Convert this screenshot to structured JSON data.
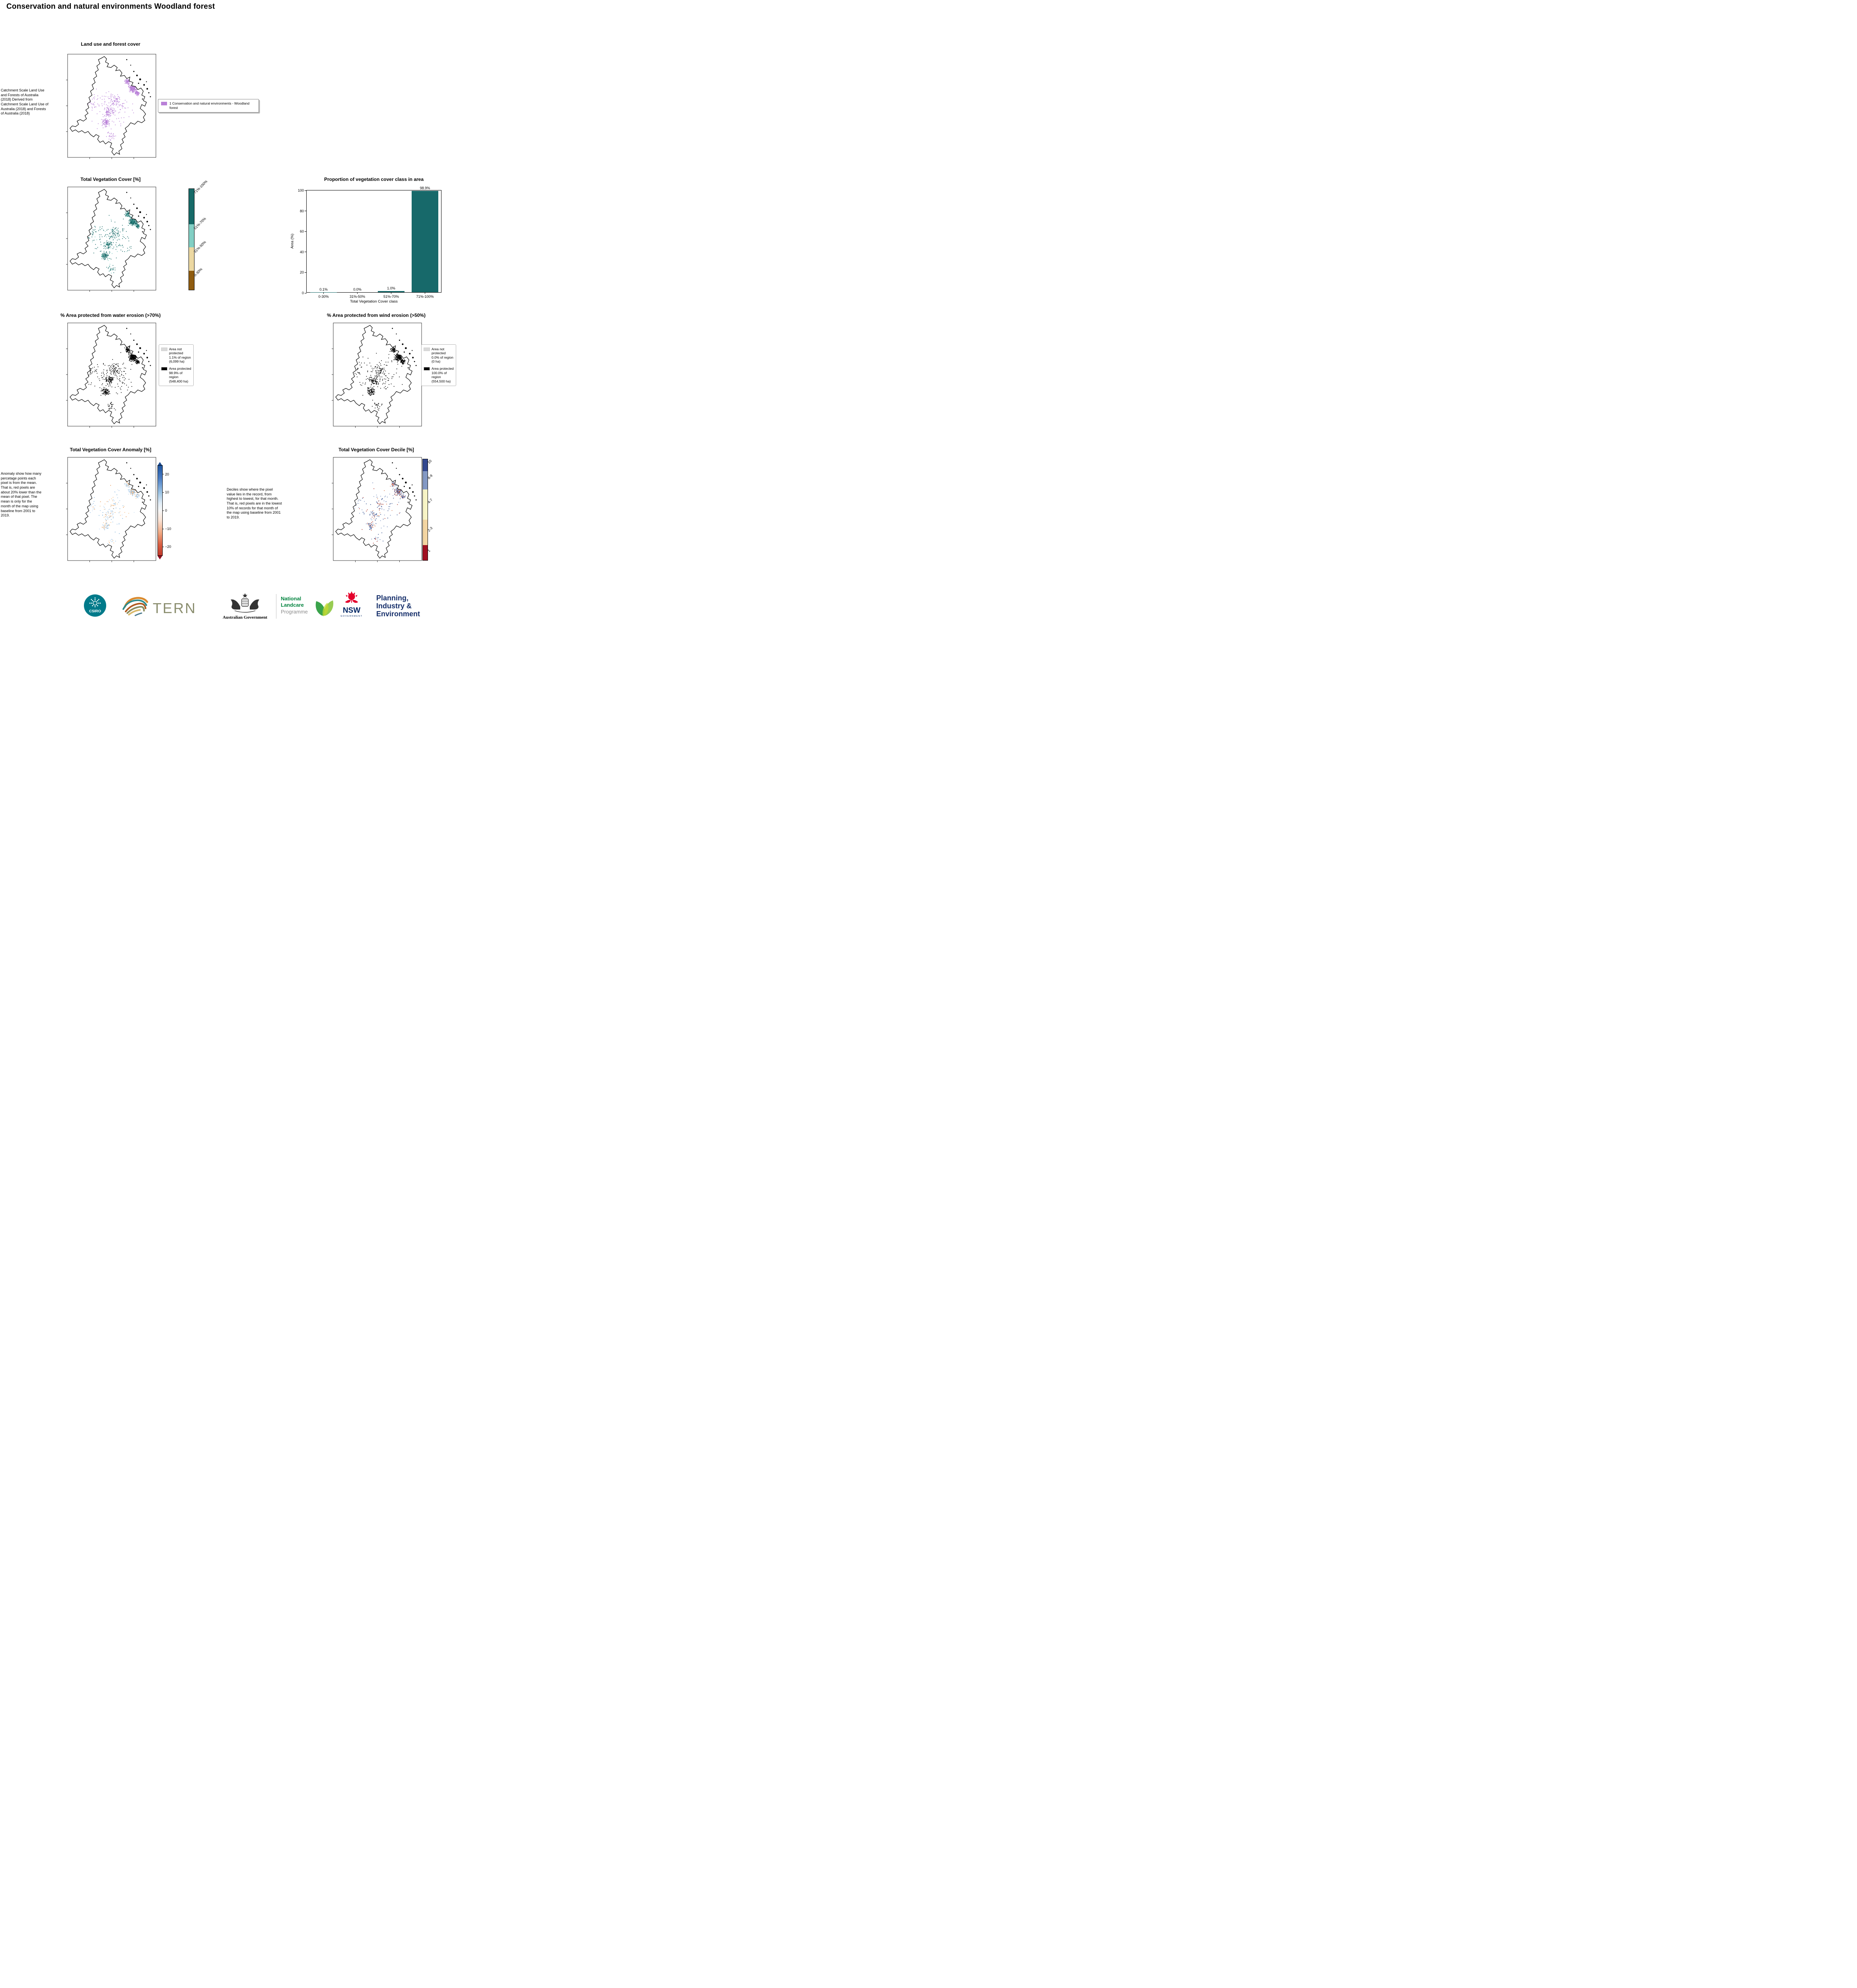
{
  "page": {
    "title": "Conservation and natural environments Woodland forest"
  },
  "land_use": {
    "title": "Land use and forest cover",
    "caption": "Catchment Scale Land Use and Forests of Australia (2018) Derived from Catchment Scale Land Use of Australia (2018) and Forests of Australia (2018)",
    "legend": {
      "label": "1 Conservation and natural environments - Woodland forest",
      "color": "#b980d8"
    },
    "dots": [
      {
        "color": "#b980d8",
        "weight": 1
      }
    ]
  },
  "veg_cover": {
    "title": "Total Vegetation Cover [%]",
    "classes": [
      {
        "label": "71%-100%",
        "color": "#176a68"
      },
      {
        "label": "51%-70%",
        "color": "#82cfc4"
      },
      {
        "label": "31%-50%",
        "color": "#ecd8a2"
      },
      {
        "label": "0-30%",
        "color": "#8f5c10"
      }
    ],
    "dots": [
      {
        "color": "#176a68",
        "weight": 0.85
      },
      {
        "color": "#82cfc4",
        "weight": 0.15
      }
    ]
  },
  "chart_data": {
    "type": "bar",
    "title": "Proportion of vegetation cover class in area",
    "xlabel": "Total Vegetation Cover class",
    "ylabel": "Area (%)",
    "categories": [
      "0-30%",
      "31%-50%",
      "51%-70%",
      "71%-100%"
    ],
    "values": [
      0.1,
      0.0,
      1.0,
      98.9
    ],
    "value_labels": [
      "0.1%",
      "0.0%",
      "1.0%",
      "98.9%"
    ],
    "bar_color": "#17696a",
    "ylim": [
      0,
      100
    ],
    "yticks": [
      0,
      20,
      40,
      60,
      80,
      100
    ],
    "grid": false,
    "legend_position": "none"
  },
  "water_erosion": {
    "title": "% Area protected from water erosion (>70%)",
    "legend": [
      {
        "label": "Area not protected 1.1% of region (6,099 ha)",
        "color": "#d9d9d9"
      },
      {
        "label": "Area protected 98.9% of region (548,400 ha)",
        "color": "#000000"
      }
    ],
    "dots": [
      {
        "color": "#000000",
        "weight": 1
      }
    ]
  },
  "wind_erosion": {
    "title": "% Area protected from wind erosion (>50%)",
    "legend": [
      {
        "label": "Area not protected 0.0% of region (0 ha)",
        "color": "#d9d9d9"
      },
      {
        "label": "Area protected 100.0% of region (554,500 ha)",
        "color": "#000000"
      }
    ],
    "dots": [
      {
        "color": "#000000",
        "weight": 1
      }
    ]
  },
  "anomaly": {
    "title": "Total Vegetation Cover Anomaly [%]",
    "caption": "Anomaly show how many percetage points each pixel is from the mean. That is, red pixels are about 20% lower than the mean of that pixel. The mean is only for the month of the map using baseline from 2001 to 2019.",
    "colorbar_ticks": [
      "20",
      "10",
      "0",
      "−10",
      "−20"
    ],
    "dots": [
      {
        "color": "#9fc5e8",
        "weight": 0.3
      },
      {
        "color": "#cadef2",
        "weight": 0.18
      },
      {
        "color": "#f6c088",
        "weight": 0.24
      },
      {
        "color": "#e8954f",
        "weight": 0.1
      },
      {
        "color": "#7fb2d8",
        "weight": 0.18
      }
    ]
  },
  "decile": {
    "title": "Total Vegetation Cover Decile [%]",
    "caption": "Deciles show where the pixel value lies in the record, from highest to lowest, for that month. That is, red pixels are in the lowest 10% of records for that month of the map using baseline from 2001 to 2019.",
    "classes": [
      {
        "label": "10",
        "color": "#32488f"
      },
      {
        "label": "8-9",
        "color": "#8399c4"
      },
      {
        "label": "4-7",
        "color": "#f7f4c6"
      },
      {
        "label": "2-3",
        "color": "#f3d5a2"
      },
      {
        "label": "1",
        "color": "#a01022"
      }
    ],
    "dots": [
      {
        "color": "#34508f",
        "weight": 0.3
      },
      {
        "color": "#8399c4",
        "weight": 0.2
      },
      {
        "color": "#a93226",
        "weight": 0.2
      },
      {
        "color": "#d77a50",
        "weight": 0.12
      },
      {
        "color": "#6f86b8",
        "weight": 0.18
      }
    ]
  },
  "footer": {
    "csiro": "CSIRO",
    "tern": "TERN",
    "aus_gov": "Australian Government",
    "landcare": [
      "National",
      "Landcare",
      "Programme"
    ],
    "nsw": "NSW",
    "nsw_sub": "GOVERNMENT",
    "dpie": [
      "Planning,",
      "Industry &",
      "Environment"
    ]
  }
}
